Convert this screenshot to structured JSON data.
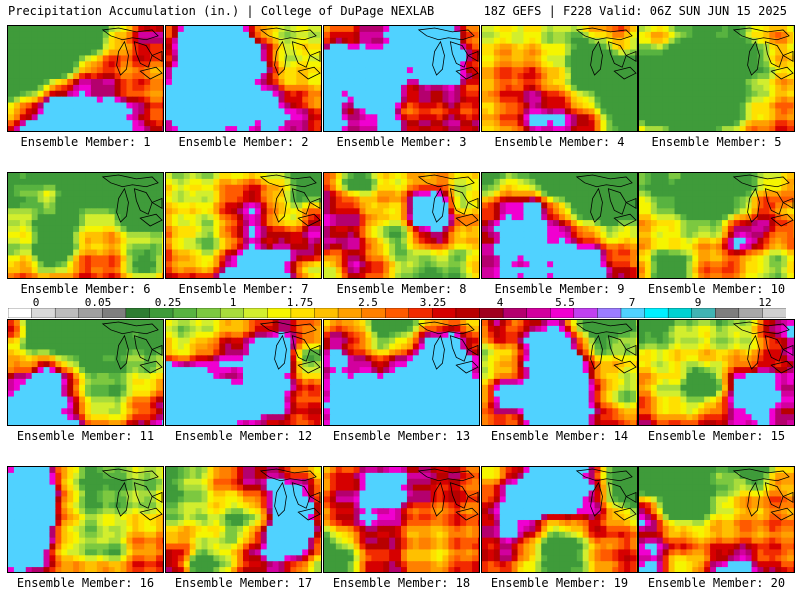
{
  "header": {
    "title": "Precipitation Accumulation (in.) | College of DuPage NEXLAB",
    "run_info": "18Z GEFS | F228 Valid: 06Z SUN JUN 15 2025"
  },
  "panels": [
    {
      "label": "Ensemble Member: 1",
      "seed": 11,
      "wet": 0.62
    },
    {
      "label": "Ensemble Member: 2",
      "seed": 23,
      "wet": 0.66
    },
    {
      "label": "Ensemble Member: 3",
      "seed": 37,
      "wet": 0.68
    },
    {
      "label": "Ensemble Member: 4",
      "seed": 41,
      "wet": 0.55
    },
    {
      "label": "Ensemble Member: 5",
      "seed": 53,
      "wet": 0.52
    },
    {
      "label": "Ensemble Member: 6",
      "seed": 67,
      "wet": 0.6
    },
    {
      "label": "Ensemble Member: 7",
      "seed": 71,
      "wet": 0.64
    },
    {
      "label": "Ensemble Member: 8",
      "seed": 83,
      "wet": 0.58
    },
    {
      "label": "Ensemble Member: 9",
      "seed": 97,
      "wet": 0.56
    },
    {
      "label": "Ensemble Member: 10",
      "seed": 101,
      "wet": 0.57
    },
    {
      "label": "Ensemble Member: 11",
      "seed": 113,
      "wet": 0.6
    },
    {
      "label": "Ensemble Member: 12",
      "seed": 127,
      "wet": 0.55
    },
    {
      "label": "Ensemble Member: 13",
      "seed": 131,
      "wet": 0.57
    },
    {
      "label": "Ensemble Member: 14",
      "seed": 149,
      "wet": 0.61
    },
    {
      "label": "Ensemble Member: 15",
      "seed": 157,
      "wet": 0.62
    },
    {
      "label": "Ensemble Member: 16",
      "seed": 163,
      "wet": 0.52
    },
    {
      "label": "Ensemble Member: 17",
      "seed": 173,
      "wet": 0.5
    },
    {
      "label": "Ensemble Member: 18",
      "seed": 181,
      "wet": 0.56
    },
    {
      "label": "Ensemble Member: 19",
      "seed": 191,
      "wet": 0.6
    },
    {
      "label": "Ensemble Member: 20",
      "seed": 199,
      "wet": 0.54
    }
  ],
  "legend": {
    "ticks": [
      "0",
      "0.05",
      "0.25",
      "1",
      "1.75",
      "2.5",
      "3.25",
      "4",
      "5.5",
      "7",
      "9",
      "12"
    ],
    "colors": [
      "#ffffff",
      "#d9d9d9",
      "#bdbdbd",
      "#a0a0a0",
      "#7f7f7f",
      "#2e7d32",
      "#3f9b3a",
      "#58b340",
      "#7cc840",
      "#a8dc3c",
      "#d2ee2e",
      "#f5f500",
      "#ffe000",
      "#ffc000",
      "#ffa000",
      "#ff8000",
      "#ff5a00",
      "#f22a00",
      "#d60000",
      "#b80000",
      "#a0001e",
      "#b4006e",
      "#d2009e",
      "#f000d0",
      "#c040f0",
      "#9c7cff",
      "#50d2ff",
      "#00f0ff",
      "#00d2d2",
      "#40b4b4",
      "#7e7e7e",
      "#a8a8a8",
      "#d0d0d0"
    ]
  },
  "colors": {
    "border": "#000000",
    "map_outline": "#000000"
  }
}
